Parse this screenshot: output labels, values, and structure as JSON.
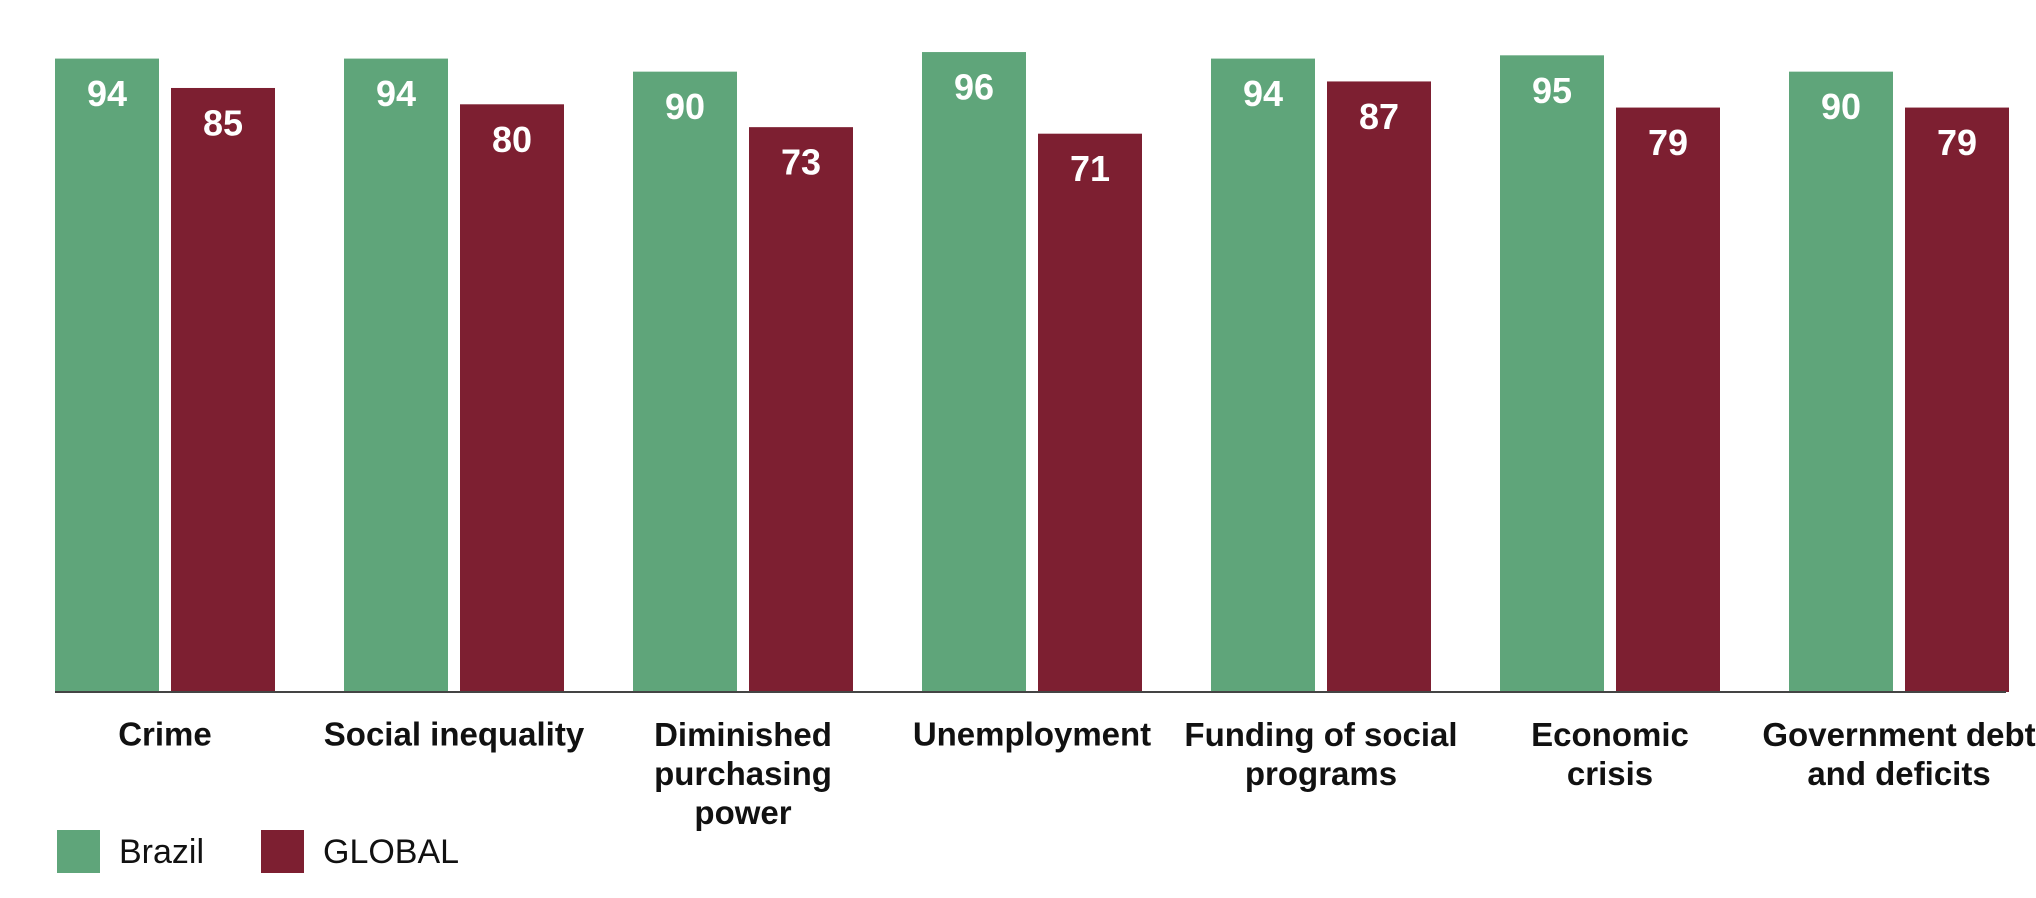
{
  "chart_data": {
    "type": "bar",
    "categories": [
      "Crime",
      "Social inequality",
      "Diminished\npurchasing\npower",
      "Unemployment",
      "Funding of social\nprograms",
      "Economic\ncrisis",
      "Government debt\nand deficits"
    ],
    "series": [
      {
        "name": "Brazil",
        "color": "#5fa57a",
        "values": [
          94,
          94,
          90,
          96,
          94,
          95,
          90
        ]
      },
      {
        "name": "GLOBAL",
        "color": "#7d1f31",
        "values": [
          85,
          80,
          73,
          71,
          87,
          79,
          79
        ]
      }
    ],
    "ylim": [
      -100,
      100
    ]
  }
}
